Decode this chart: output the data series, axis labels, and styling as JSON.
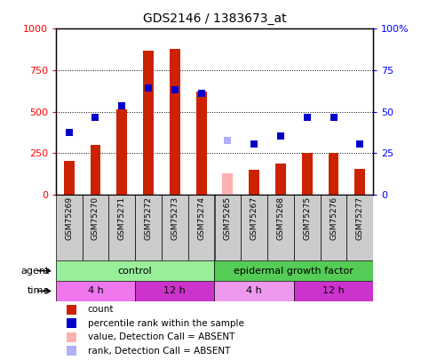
{
  "title": "GDS2146 / 1383673_at",
  "samples": [
    "GSM75269",
    "GSM75270",
    "GSM75271",
    "GSM75272",
    "GSM75273",
    "GSM75274",
    "GSM75265",
    "GSM75267",
    "GSM75268",
    "GSM75275",
    "GSM75276",
    "GSM75277"
  ],
  "counts": [
    200,
    300,
    515,
    870,
    880,
    620,
    null,
    150,
    185,
    250,
    250,
    155
  ],
  "counts_absent": [
    null,
    null,
    null,
    null,
    null,
    null,
    130,
    null,
    null,
    null,
    null,
    null
  ],
  "ranks": [
    37.5,
    46.5,
    53.5,
    64.0,
    63.0,
    61.0,
    null,
    30.5,
    35.5,
    46.5,
    46.5,
    30.5
  ],
  "ranks_absent": [
    null,
    null,
    null,
    null,
    null,
    null,
    32.5,
    null,
    null,
    null,
    null,
    null
  ],
  "bar_color": "#cc2200",
  "bar_absent_color": "#ffb0b0",
  "dot_color": "#0000cc",
  "dot_absent_color": "#b0b0ff",
  "ylim_left": [
    0,
    1000
  ],
  "ylim_right": [
    0,
    100
  ],
  "yticks_left": [
    0,
    250,
    500,
    750,
    1000
  ],
  "yticks_right": [
    0,
    25,
    50,
    75,
    100
  ],
  "agent_groups": [
    {
      "label": "control",
      "start": 0,
      "end": 6,
      "color": "#99ee99"
    },
    {
      "label": "epidermal growth factor",
      "start": 6,
      "end": 12,
      "color": "#55cc55"
    }
  ],
  "time_groups": [
    {
      "label": "4 h",
      "start": 0,
      "end": 3,
      "color": "#ee77ee"
    },
    {
      "label": "12 h",
      "start": 3,
      "end": 6,
      "color": "#cc33cc"
    },
    {
      "label": "4 h",
      "start": 6,
      "end": 9,
      "color": "#ee99ee"
    },
    {
      "label": "12 h",
      "start": 9,
      "end": 12,
      "color": "#cc33cc"
    }
  ],
  "legend_items": [
    {
      "label": "count",
      "color": "#cc2200"
    },
    {
      "label": "percentile rank within the sample",
      "color": "#0000cc"
    },
    {
      "label": "value, Detection Call = ABSENT",
      "color": "#ffb0b0"
    },
    {
      "label": "rank, Detection Call = ABSENT",
      "color": "#b0b0ff"
    }
  ],
  "bar_width": 0.4,
  "dot_size": 30,
  "cell_bg": "#cccccc",
  "plot_bg": "#ffffff"
}
